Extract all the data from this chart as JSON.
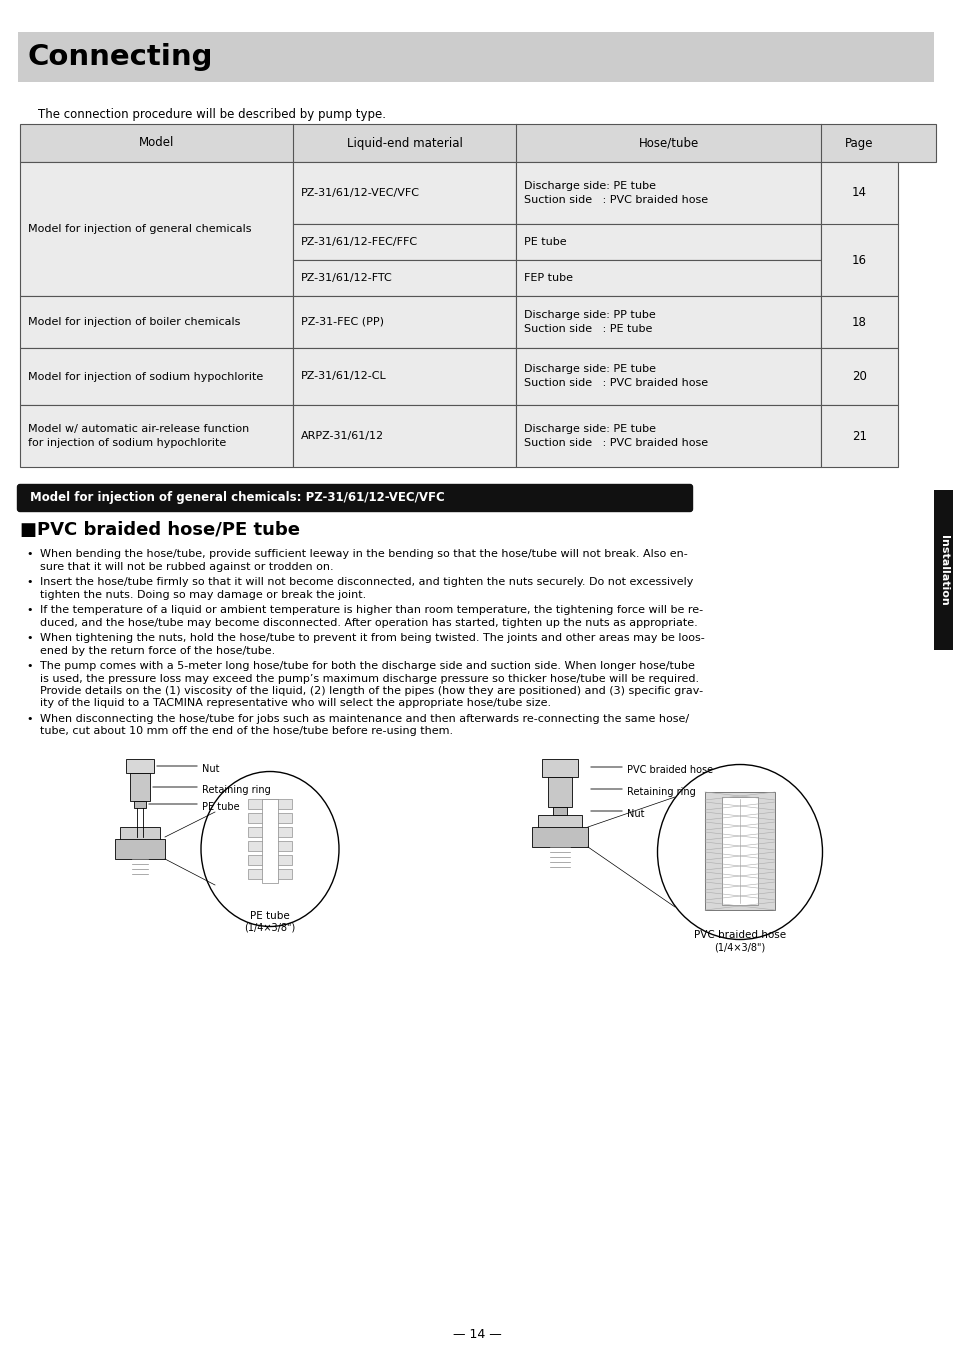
{
  "title": "Connecting",
  "title_bg": "#cccccc",
  "intro_text": "The connection procedure will be described by pump type.",
  "table_headers": [
    "Model",
    "Liquid-end material",
    "Hose/tube",
    "Page"
  ],
  "table_rows": [
    {
      "model": "Model for injection of general chemicals",
      "liquid": "PZ-31/61/12-VEC/VFC",
      "hose": "Discharge side: PE tube\nSuction side   : PVC braided hose",
      "page": "14",
      "group": 0
    },
    {
      "model": "",
      "liquid": "PZ-31/61/12-FEC/FFC",
      "hose": "PE tube",
      "page": "16",
      "group": 0
    },
    {
      "model": "",
      "liquid": "PZ-31/61/12-FTC",
      "hose": "FEP tube",
      "page": "16",
      "group": 0
    },
    {
      "model": "Model for injection of boiler chemicals",
      "liquid": "PZ-31-FEC (PP)",
      "hose": "Discharge side: PP tube\nSuction side   : PE tube",
      "page": "18",
      "group": 1
    },
    {
      "model": "Model for injection of sodium hypochlorite",
      "liquid": "PZ-31/61/12-CL",
      "hose": "Discharge side: PE tube\nSuction side   : PVC braided hose",
      "page": "20",
      "group": 2
    },
    {
      "model": "Model w/ automatic air-release function\nfor injection of sodium hypochlorite",
      "liquid": "ARPZ-31/61/12",
      "hose": "Discharge side: PE tube\nSuction side   : PVC braided hose",
      "page": "21",
      "group": 3
    }
  ],
  "section_banner": "Model for injection of general chemicals: PZ-31/61/12-VEC/VFC",
  "section_banner_bg": "#111111",
  "section_banner_fg": "#ffffff",
  "section_title": "■PVC braided hose/PE tube",
  "bullet_points": [
    "When bending the hose/tube, provide sufficient leeway in the bending so that the hose/tube will not break. Also en-\nsure that it will not be rubbed against or trodden on.",
    "Insert the hose/tube firmly so that it will not become disconnected, and tighten the nuts securely. Do not excessively\ntighten the nuts. Doing so may damage or break the joint.",
    "If the temperature of a liquid or ambient temperature is higher than room temperature, the tightening force will be re-\nduced, and the hose/tube may become disconnected. After operation has started, tighten up the nuts as appropriate.",
    "When tightening the nuts, hold the hose/tube to prevent it from being twisted. The joints and other areas may be loos-\nened by the return force of the hose/tube.",
    "The pump comes with a 5-meter long hose/tube for both the discharge side and suction side. When longer hose/tube\nis used, the pressure loss may exceed the pump’s maximum discharge pressure so thicker hose/tube will be required.\nProvide details on the (1) viscosity of the liquid, (2) length of the pipes (how they are positioned) and (3) specific grav-\nity of the liquid to a TACMINA representative who will select the appropriate hose/tube size.",
    "When disconnecting the hose/tube for jobs such as maintenance and then afterwards re-connecting the same hose/\ntube, cut about 10 mm off the end of the hose/tube before re-using them."
  ],
  "page_number": "14",
  "side_tab_text": "Installation",
  "side_tab_bg": "#111111",
  "side_tab_fg": "#ffffff",
  "bg_color": "#ffffff",
  "table_header_bg": "#d8d8d8",
  "table_data_bg": "#ebebeb",
  "table_border_color": "#555555",
  "diag_left_labels": [
    "Nut",
    "Retaining ring",
    "PE tube"
  ],
  "diag_right_labels": [
    "PVC braided hose",
    "Retaining ring",
    "Nut"
  ],
  "diag_left_caption": "PE tube",
  "diag_left_subcaption": "(1/4×3/8\")",
  "diag_right_caption": "PVC braided hose",
  "diag_right_subcaption": "(1/4×3/8\")"
}
